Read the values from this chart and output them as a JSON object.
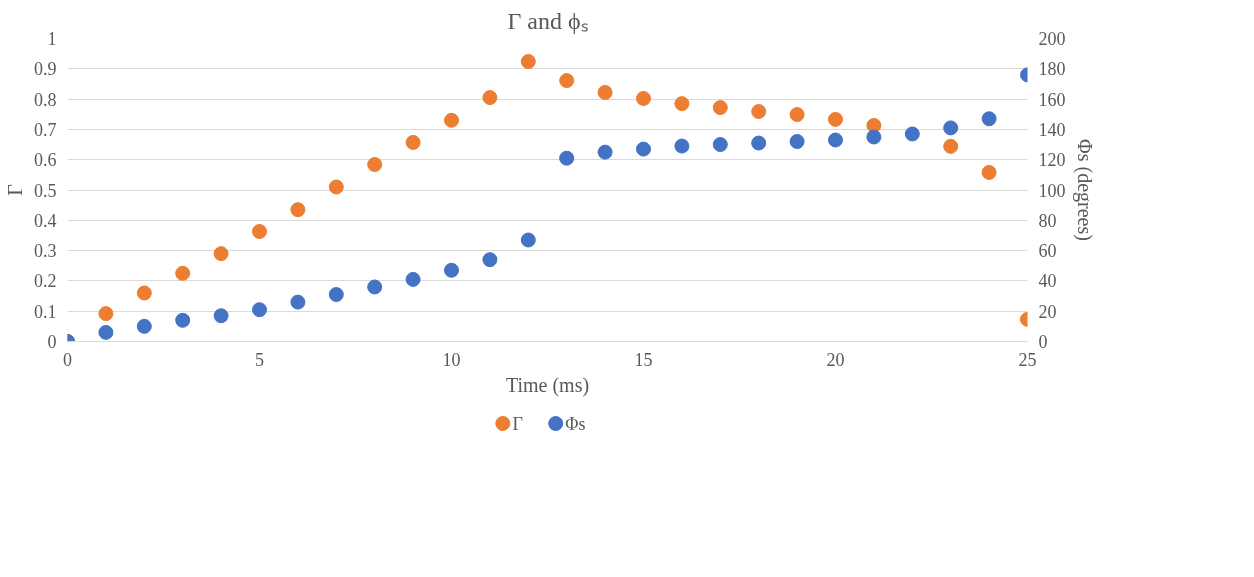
{
  "chart_data": {
    "type": "scatter",
    "title": "Γ and ϕₛ",
    "xlabel": "Time (ms)",
    "ylabel": "Γ",
    "y2label": "Φs (degrees)",
    "x": [
      0,
      1,
      2,
      3,
      4,
      5,
      6,
      7,
      8,
      9,
      10,
      11,
      12,
      13,
      14,
      15,
      16,
      17,
      18,
      19,
      20,
      21,
      22,
      23,
      24,
      25
    ],
    "series": [
      {
        "name": "Γ",
        "color": "#ed7d31",
        "values": [
          0,
          0.092,
          0.16,
          0.225,
          0.29,
          0.363,
          0.435,
          0.51,
          0.584,
          0.657,
          0.73,
          0.805,
          0.924,
          0.861,
          0.822,
          0.802,
          0.785,
          0.772,
          0.759,
          0.749,
          0.733,
          0.713,
          null,
          0.644,
          0.558,
          0.073
        ]
      },
      {
        "name": "Φs",
        "color": "#4472c4",
        "axis": "y2",
        "values": [
          0,
          6,
          10,
          14,
          17,
          21,
          26,
          31,
          36,
          41,
          47,
          54,
          67,
          121,
          125,
          127,
          129,
          130,
          131,
          132,
          133,
          135,
          137,
          141,
          147,
          176
        ]
      }
    ],
    "xlim": [
      0,
      25
    ],
    "xticks": [
      0,
      5,
      10,
      15,
      20,
      25
    ],
    "ylim": [
      0,
      1
    ],
    "yticks": [
      0,
      0.1,
      0.2,
      0.3,
      0.4,
      0.5,
      0.6,
      0.7,
      0.8,
      0.9,
      1
    ],
    "y2lim": [
      0,
      200
    ],
    "y2ticks": [
      0,
      20,
      40,
      60,
      80,
      100,
      120,
      140,
      160,
      180,
      200
    ],
    "grid": "y",
    "legend": "bottom",
    "marker": "circle"
  }
}
